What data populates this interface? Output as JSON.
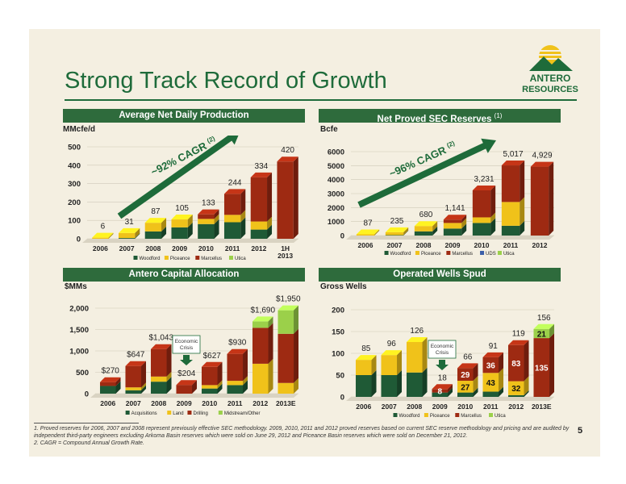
{
  "title": "Strong Track Record of Growth",
  "page_number": "5",
  "logo": {
    "line1": "ANTERO",
    "line2": "RESOURCES"
  },
  "colors": {
    "woodford": "#1f5a36",
    "pinnacle": "#f0c21a",
    "marcellus": "#9e2a12",
    "utica": "#9bd04a",
    "arrow": "#1e6b3a",
    "header": "#2e6b3c"
  },
  "panels": {
    "production": {
      "header": "Average Net Daily Production",
      "unit": "MMcfe/d",
      "cagr": "~92% CAGR (2)"
    },
    "reserves": {
      "header": "Net Proved SEC Reserves",
      "header_sup": "(1)",
      "unit": "Bcfe",
      "cagr": "~96% CAGR (2)"
    },
    "capital": {
      "header": "Antero Capital Allocation",
      "unit": "$MMs",
      "callout": "Economic Crisis"
    },
    "wells": {
      "header": "Operated Wells Spud",
      "unit": "Gross Wells",
      "callout": "Economic Crisis"
    }
  },
  "chart_data": [
    {
      "id": "production",
      "type": "bar",
      "stacked": true,
      "categories": [
        "2006",
        "2007",
        "2008",
        "2009",
        "2010",
        "2011",
        "2012",
        "1H 2013"
      ],
      "ylim": [
        0,
        500
      ],
      "yticks": [
        0,
        100,
        200,
        300,
        400,
        500
      ],
      "totals": [
        "6",
        "31",
        "87",
        "105",
        "133",
        "244",
        "334",
        "420"
      ],
      "series": [
        {
          "name": "Woodford",
          "color": "#1f5a36",
          "values": [
            0,
            4,
            40,
            62,
            80,
            90,
            50,
            0
          ]
        },
        {
          "name": "Piceance",
          "color": "#f0c21a",
          "values": [
            6,
            27,
            47,
            43,
            28,
            40,
            44,
            0
          ]
        },
        {
          "name": "Marcellus",
          "color": "#9e2a12",
          "values": [
            0,
            0,
            0,
            0,
            25,
            114,
            240,
            420
          ]
        },
        {
          "name": "Utica",
          "color": "#9bd04a",
          "values": [
            0,
            0,
            0,
            0,
            0,
            0,
            0,
            0
          ]
        }
      ],
      "legend": [
        "Woodford",
        "Piceance",
        "Marcellus",
        "Utica"
      ]
    },
    {
      "id": "reserves",
      "type": "bar",
      "stacked": true,
      "categories": [
        "2006",
        "2007",
        "2008",
        "2009",
        "2010",
        "2011",
        "2012"
      ],
      "ylim": [
        0,
        6000
      ],
      "yticks": [
        0,
        1000,
        2000,
        3000,
        4000,
        5000,
        6000
      ],
      "totals": [
        "87",
        "235",
        "680",
        "1,141",
        "3,231",
        "5,017",
        "4,929"
      ],
      "series": [
        {
          "name": "Woodford",
          "color": "#1f5a36",
          "values": [
            0,
            30,
            300,
            500,
            900,
            700,
            0
          ]
        },
        {
          "name": "Piceance",
          "color": "#f0c21a",
          "values": [
            87,
            205,
            380,
            400,
            400,
            1700,
            0
          ]
        },
        {
          "name": "Marcellus",
          "color": "#9e2a12",
          "values": [
            0,
            0,
            0,
            241,
            1931,
            2617,
            4929
          ]
        },
        {
          "name": "UDS",
          "color": "#3b5fa8",
          "values": [
            0,
            0,
            0,
            0,
            0,
            0,
            0
          ]
        },
        {
          "name": "Utica",
          "color": "#9bd04a",
          "values": [
            0,
            0,
            0,
            0,
            0,
            0,
            0
          ]
        }
      ],
      "legend": [
        "Woodford",
        "Piceance",
        "Marcellus",
        "UDS",
        "Utica"
      ]
    },
    {
      "id": "capital",
      "type": "bar",
      "stacked": true,
      "categories": [
        "2006",
        "2007",
        "2008",
        "2009",
        "2010",
        "2011",
        "2012",
        "2013E"
      ],
      "ylim": [
        0,
        2000
      ],
      "yticks": [
        "0",
        "500",
        "1,000",
        "1,500",
        "2,000"
      ],
      "ytick_values": [
        0,
        500,
        1000,
        1500,
        2000
      ],
      "totals": [
        "$270",
        "$647",
        "$1,043",
        "$204",
        "$627",
        "$930",
        "$1,690",
        "$1,950"
      ],
      "series": [
        {
          "name": "Acquisitions",
          "color": "#1f5a36",
          "values": [
            180,
            80,
            280,
            0,
            120,
            200,
            0,
            0
          ]
        },
        {
          "name": "Land",
          "color": "#f0c21a",
          "values": [
            0,
            67,
            120,
            0,
            80,
            100,
            700,
            250
          ]
        },
        {
          "name": "Drilling",
          "color": "#9e2a12",
          "values": [
            90,
            500,
            643,
            204,
            427,
            630,
            840,
            1150
          ]
        },
        {
          "name": "Midstream/Other",
          "color": "#9bd04a",
          "values": [
            0,
            0,
            0,
            0,
            0,
            0,
            150,
            550
          ]
        }
      ],
      "legend": [
        "Acquisitions",
        "Land",
        "Drilling",
        "Midstream/Other"
      ]
    },
    {
      "id": "wells",
      "type": "bar",
      "stacked": true,
      "categories": [
        "2006",
        "2007",
        "2008",
        "2009",
        "2010",
        "2011",
        "2012",
        "2013E"
      ],
      "ylim": [
        0,
        200
      ],
      "yticks": [
        0,
        50,
        100,
        150,
        200
      ],
      "totals": [
        "85",
        "96",
        "126",
        "18",
        "66",
        "91",
        "119",
        "156"
      ],
      "series": [
        {
          "name": "Woodford",
          "color": "#1f5a36",
          "values": [
            50,
            50,
            56,
            10,
            10,
            12,
            4,
            0
          ]
        },
        {
          "name": "Piceance",
          "color": "#f0c21a",
          "values": [
            35,
            46,
            70,
            0,
            27,
            43,
            32,
            0
          ]
        },
        {
          "name": "Marcellus",
          "color": "#9e2a12",
          "values": [
            0,
            0,
            0,
            8,
            29,
            36,
            83,
            135
          ]
        },
        {
          "name": "Utica",
          "color": "#9bd04a",
          "values": [
            0,
            0,
            0,
            0,
            0,
            0,
            0,
            21
          ]
        }
      ],
      "segment_labels": [
        {
          "cat": 3,
          "series": 2,
          "text": "8"
        },
        {
          "cat": 4,
          "series": 1,
          "text": "27"
        },
        {
          "cat": 4,
          "series": 2,
          "text": "29"
        },
        {
          "cat": 5,
          "series": 1,
          "text": "43"
        },
        {
          "cat": 5,
          "series": 2,
          "text": "36"
        },
        {
          "cat": 6,
          "series": 1,
          "text": "32"
        },
        {
          "cat": 6,
          "series": 2,
          "text": "83"
        },
        {
          "cat": 7,
          "series": 2,
          "text": "135"
        },
        {
          "cat": 7,
          "series": 3,
          "text": "21"
        }
      ],
      "legend": [
        "Woodford",
        "Piceance",
        "Marcellus",
        "Utica"
      ]
    }
  ],
  "footnotes": [
    "1.   Proved reserves for 2006, 2007 and 2008 represent previously effective SEC methodology. 2009, 2010, 2011 and 2012 proved reserves based on current SEC reserve methodology and pricing and are audited by independent third-party engineers excluding Arkoma Basin reserves which were sold on June 29, 2012 and Piceance Basin reserves which were sold on December 21, 2012.",
    "2.   CAGR = Compound Annual Growth Rate."
  ]
}
